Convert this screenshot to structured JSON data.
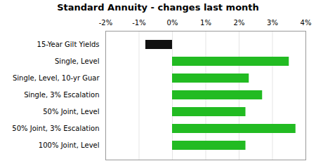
{
  "chart_data": {
    "type": "bar",
    "orientation": "horizontal",
    "title": "Standard Annuity - changes last month",
    "categories": [
      "15-Year Gilt Yields",
      "Single, Level",
      "Single, Level, 10-yr Guar",
      "Single, 3% Escalation",
      "50% Joint, Level",
      "50% Joint, 3% Escalation",
      "100% Joint, Level"
    ],
    "values": [
      -0.8,
      3.5,
      2.3,
      2.7,
      2.2,
      3.7,
      2.2
    ],
    "colors": [
      "#111111",
      "#22bb22",
      "#22bb22",
      "#22bb22",
      "#22bb22",
      "#22bb22",
      "#22bb22"
    ],
    "xlim": [
      -2.0,
      4.0
    ],
    "xticks": [
      {
        "value": -2,
        "label": "-2%"
      },
      {
        "value": -1,
        "label": "-1%"
      },
      {
        "value": 0,
        "label": "0%"
      },
      {
        "value": 1,
        "label": "1%"
      },
      {
        "value": 2,
        "label": "2%"
      },
      {
        "value": 3,
        "label": "3%"
      },
      {
        "value": 4,
        "label": "4%"
      }
    ],
    "grid": true
  }
}
